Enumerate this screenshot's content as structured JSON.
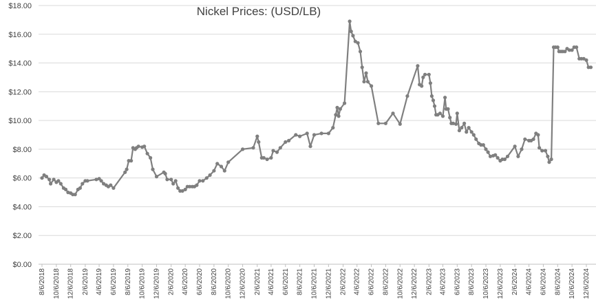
{
  "chart_data": {
    "type": "line",
    "title": "Nickel Prices: (USD/LB)",
    "xlabel": "",
    "ylabel": "",
    "ylim": [
      0,
      18
    ],
    "y_ticks": [
      "$0.00",
      "$2.00",
      "$4.00",
      "$6.00",
      "$8.00",
      "$10.00",
      "$12.00",
      "$14.00",
      "$16.00",
      "$18.00"
    ],
    "x_ticks": [
      "8/6/2018",
      "10/6/2018",
      "12/6/2018",
      "2/6/2019",
      "4/6/2019",
      "6/6/2019",
      "8/6/2019",
      "10/6/2019",
      "12/6/2019",
      "2/6/2020",
      "4/6/2020",
      "6/6/2020",
      "8/6/2020",
      "10/6/2020",
      "12/6/2020",
      "2/6/2021",
      "4/6/2021",
      "6/6/2021",
      "8/6/2021",
      "10/6/2021",
      "12/6/2021",
      "2/6/2022",
      "4/6/2022",
      "6/6/2022",
      "8/6/2022",
      "10/6/2022",
      "12/6/2022",
      "2/6/2023",
      "4/6/2023",
      "6/6/2023",
      "8/6/2023",
      "10/6/2023",
      "12/6/2023",
      "2/6/2024",
      "4/6/2024",
      "6/6/2024",
      "8/6/2024",
      "10/6/2024",
      "12/6/2024"
    ],
    "grid": true,
    "legend": "none",
    "series_color": "#7f7f7f",
    "points": [
      [
        "2018-08-06",
        6.0
      ],
      [
        "2018-08-15",
        6.2
      ],
      [
        "2018-08-25",
        6.1
      ],
      [
        "2018-09-06",
        5.9
      ],
      [
        "2018-09-12",
        5.6
      ],
      [
        "2018-09-25",
        5.9
      ],
      [
        "2018-10-06",
        5.7
      ],
      [
        "2018-10-15",
        5.8
      ],
      [
        "2018-10-25",
        5.6
      ],
      [
        "2018-11-06",
        5.3
      ],
      [
        "2018-11-15",
        5.2
      ],
      [
        "2018-11-25",
        5.0
      ],
      [
        "2018-12-06",
        4.95
      ],
      [
        "2018-12-15",
        4.85
      ],
      [
        "2018-12-25",
        4.85
      ],
      [
        "2019-01-06",
        5.2
      ],
      [
        "2019-01-15",
        5.3
      ],
      [
        "2019-01-25",
        5.6
      ],
      [
        "2019-02-06",
        5.8
      ],
      [
        "2019-02-15",
        5.8
      ],
      [
        "2019-03-25",
        5.9
      ],
      [
        "2019-04-06",
        5.95
      ],
      [
        "2019-04-15",
        5.8
      ],
      [
        "2019-04-25",
        5.6
      ],
      [
        "2019-05-06",
        5.5
      ],
      [
        "2019-05-15",
        5.4
      ],
      [
        "2019-05-25",
        5.5
      ],
      [
        "2019-06-06",
        5.3
      ],
      [
        "2019-07-25",
        6.4
      ],
      [
        "2019-08-01",
        6.6
      ],
      [
        "2019-08-10",
        7.2
      ],
      [
        "2019-08-20",
        7.2
      ],
      [
        "2019-08-28",
        8.1
      ],
      [
        "2019-09-06",
        8.0
      ],
      [
        "2019-09-12",
        8.1
      ],
      [
        "2019-09-20",
        8.2
      ],
      [
        "2019-10-06",
        8.15
      ],
      [
        "2019-10-15",
        8.2
      ],
      [
        "2019-10-28",
        7.7
      ],
      [
        "2019-11-10",
        7.4
      ],
      [
        "2019-11-20",
        6.6
      ],
      [
        "2019-12-06",
        6.1
      ],
      [
        "2020-01-06",
        6.4
      ],
      [
        "2020-01-12",
        6.3
      ],
      [
        "2020-01-20",
        5.9
      ],
      [
        "2020-02-06",
        5.9
      ],
      [
        "2020-02-15",
        5.6
      ],
      [
        "2020-02-25",
        5.8
      ],
      [
        "2020-03-06",
        5.3
      ],
      [
        "2020-03-15",
        5.1
      ],
      [
        "2020-03-25",
        5.1
      ],
      [
        "2020-04-06",
        5.2
      ],
      [
        "2020-04-15",
        5.4
      ],
      [
        "2020-04-25",
        5.4
      ],
      [
        "2020-05-06",
        5.4
      ],
      [
        "2020-05-15",
        5.4
      ],
      [
        "2020-05-25",
        5.5
      ],
      [
        "2020-06-06",
        5.8
      ],
      [
        "2020-06-20",
        5.8
      ],
      [
        "2020-07-06",
        6.0
      ],
      [
        "2020-07-20",
        6.2
      ],
      [
        "2020-08-06",
        6.5
      ],
      [
        "2020-08-20",
        7.0
      ],
      [
        "2020-09-06",
        6.8
      ],
      [
        "2020-09-20",
        6.5
      ],
      [
        "2020-10-06",
        7.1
      ],
      [
        "2020-12-06",
        8.0
      ],
      [
        "2021-01-20",
        8.1
      ],
      [
        "2021-02-06",
        8.9
      ],
      [
        "2021-02-12",
        8.5
      ],
      [
        "2021-02-25",
        7.4
      ],
      [
        "2021-03-06",
        7.4
      ],
      [
        "2021-03-20",
        7.3
      ],
      [
        "2021-04-06",
        7.4
      ],
      [
        "2021-04-15",
        7.9
      ],
      [
        "2021-05-01",
        7.8
      ],
      [
        "2021-05-15",
        8.1
      ],
      [
        "2021-06-06",
        8.5
      ],
      [
        "2021-06-20",
        8.6
      ],
      [
        "2021-07-20",
        9.0
      ],
      [
        "2021-08-06",
        8.9
      ],
      [
        "2021-09-06",
        9.1
      ],
      [
        "2021-09-20",
        8.2
      ],
      [
        "2021-10-06",
        9.0
      ],
      [
        "2021-11-06",
        9.1
      ],
      [
        "2021-12-06",
        9.1
      ],
      [
        "2021-12-25",
        9.5
      ],
      [
        "2022-01-06",
        10.4
      ],
      [
        "2022-01-12",
        10.9
      ],
      [
        "2022-01-18",
        10.3
      ],
      [
        "2022-01-25",
        10.8
      ],
      [
        "2022-02-12",
        11.2
      ],
      [
        "2022-03-06",
        16.9
      ],
      [
        "2022-03-12",
        16.2
      ],
      [
        "2022-03-20",
        15.9
      ],
      [
        "2022-03-30",
        15.5
      ],
      [
        "2022-04-10",
        15.4
      ],
      [
        "2022-04-20",
        14.8
      ],
      [
        "2022-04-28",
        13.7
      ],
      [
        "2022-05-06",
        12.7
      ],
      [
        "2022-05-15",
        13.3
      ],
      [
        "2022-05-22",
        12.7
      ],
      [
        "2022-06-06",
        12.4
      ],
      [
        "2022-07-06",
        9.8
      ],
      [
        "2022-08-06",
        9.8
      ],
      [
        "2022-09-06",
        10.5
      ],
      [
        "2022-10-06",
        9.75
      ],
      [
        "2022-11-06",
        11.7
      ],
      [
        "2022-12-20",
        13.8
      ],
      [
        "2022-12-28",
        12.5
      ],
      [
        "2023-01-06",
        12.4
      ],
      [
        "2023-01-12",
        13.0
      ],
      [
        "2023-01-20",
        13.2
      ],
      [
        "2023-02-06",
        13.2
      ],
      [
        "2023-02-12",
        12.6
      ],
      [
        "2023-02-18",
        11.7
      ],
      [
        "2023-02-24",
        11.4
      ],
      [
        "2023-03-02",
        11.0
      ],
      [
        "2023-03-08",
        10.4
      ],
      [
        "2023-03-15",
        10.4
      ],
      [
        "2023-03-25",
        10.5
      ],
      [
        "2023-04-06",
        10.3
      ],
      [
        "2023-04-15",
        11.6
      ],
      [
        "2023-04-20",
        10.8
      ],
      [
        "2023-04-28",
        10.8
      ],
      [
        "2023-05-06",
        10.2
      ],
      [
        "2023-05-12",
        9.8
      ],
      [
        "2023-05-20",
        9.8
      ],
      [
        "2023-06-01",
        9.75
      ],
      [
        "2023-06-06",
        10.5
      ],
      [
        "2023-06-15",
        9.3
      ],
      [
        "2023-06-25",
        9.5
      ],
      [
        "2023-07-06",
        9.8
      ],
      [
        "2023-07-15",
        9.2
      ],
      [
        "2023-07-25",
        9.5
      ],
      [
        "2023-08-06",
        9.2
      ],
      [
        "2023-08-15",
        9.0
      ],
      [
        "2023-08-25",
        8.7
      ],
      [
        "2023-09-06",
        8.4
      ],
      [
        "2023-09-15",
        8.3
      ],
      [
        "2023-09-25",
        8.3
      ],
      [
        "2023-10-06",
        8.0
      ],
      [
        "2023-10-15",
        7.8
      ],
      [
        "2023-10-25",
        7.5
      ],
      [
        "2023-11-06",
        7.55
      ],
      [
        "2023-11-15",
        7.6
      ],
      [
        "2023-11-25",
        7.4
      ],
      [
        "2023-12-06",
        7.2
      ],
      [
        "2023-12-15",
        7.3
      ],
      [
        "2023-12-25",
        7.3
      ],
      [
        "2024-01-06",
        7.5
      ],
      [
        "2024-02-06",
        8.2
      ],
      [
        "2024-02-20",
        7.5
      ],
      [
        "2024-03-06",
        8.0
      ],
      [
        "2024-03-20",
        8.7
      ],
      [
        "2024-04-06",
        8.6
      ],
      [
        "2024-04-15",
        8.6
      ],
      [
        "2024-04-25",
        8.7
      ],
      [
        "2024-05-06",
        9.1
      ],
      [
        "2024-05-15",
        9.0
      ],
      [
        "2024-05-20",
        8.1
      ],
      [
        "2024-06-01",
        7.9
      ],
      [
        "2024-06-15",
        7.9
      ],
      [
        "2024-06-25",
        7.5
      ],
      [
        "2024-07-01",
        7.1
      ],
      [
        "2024-07-10",
        7.3
      ],
      [
        "2024-07-20",
        15.1
      ],
      [
        "2024-07-28",
        15.1
      ],
      [
        "2024-08-06",
        15.1
      ],
      [
        "2024-08-12",
        14.8
      ],
      [
        "2024-08-20",
        14.8
      ],
      [
        "2024-08-28",
        14.8
      ],
      [
        "2024-09-06",
        14.8
      ],
      [
        "2024-09-15",
        15.0
      ],
      [
        "2024-09-25",
        14.9
      ],
      [
        "2024-10-06",
        14.9
      ],
      [
        "2024-10-15",
        15.1
      ],
      [
        "2024-10-25",
        15.1
      ],
      [
        "2024-11-06",
        14.3
      ],
      [
        "2024-11-15",
        14.3
      ],
      [
        "2024-11-25",
        14.3
      ],
      [
        "2024-12-06",
        14.2
      ],
      [
        "2024-12-15",
        13.7
      ],
      [
        "2024-12-25",
        13.7
      ]
    ]
  }
}
